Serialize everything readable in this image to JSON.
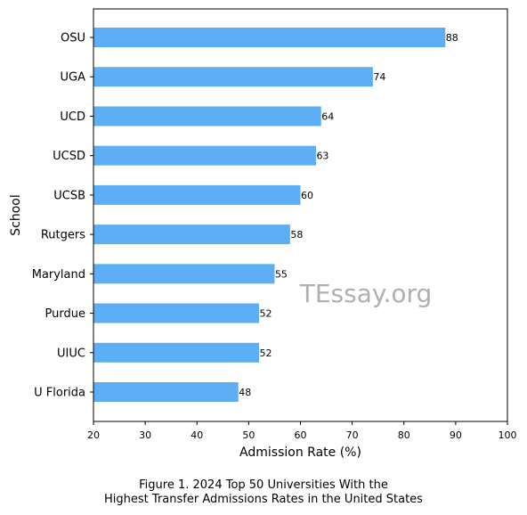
{
  "chart_data": {
    "type": "bar",
    "orientation": "horizontal",
    "categories": [
      "OSU",
      "UGA",
      "UCD",
      "UCSD",
      "UCSB",
      "Rutgers",
      "Maryland",
      "Purdue",
      "UIUC",
      "U Florida"
    ],
    "values": [
      88,
      74,
      64,
      63,
      60,
      58,
      55,
      52,
      52,
      48
    ],
    "data_labels": [
      "88",
      "74",
      "64",
      "63",
      "60",
      "58",
      "55",
      "52",
      "52",
      "48"
    ],
    "xlabel": "Admission Rate (%)",
    "ylabel": "School",
    "xlim": [
      20,
      100
    ],
    "xticks": [
      20,
      30,
      40,
      50,
      60,
      70,
      80,
      90,
      100
    ],
    "grid": false,
    "bar_color": "#5daef5",
    "watermark": "TEssay.org",
    "caption_line1": "Figure 1. 2024 Top 50 Universities With the",
    "caption_line2": "Highest Transfer Admissions Rates in the United States"
  }
}
